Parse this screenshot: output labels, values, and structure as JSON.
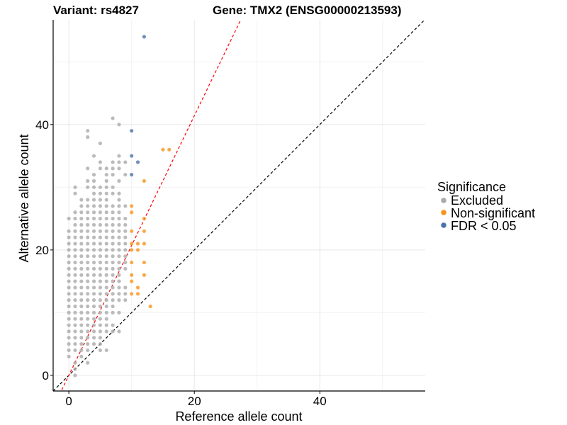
{
  "chart_data": {
    "type": "scatter",
    "title_left": "Variant: rs4827",
    "title_right": "Gene: TMX2 (ENSG00000213593)",
    "xlabel": "Reference allele count",
    "ylabel": "Alternative allele count",
    "xlim": [
      -2.5,
      56.8
    ],
    "ylim": [
      -2.5,
      56.7
    ],
    "xticks": [
      0,
      20,
      40
    ],
    "yticks": [
      0,
      20,
      40
    ],
    "grid": true,
    "reference_lines": [
      {
        "name": "identity",
        "slope": 1,
        "intercept": 0,
        "color": "#000000",
        "style": "dashed"
      },
      {
        "name": "fitted",
        "slope": 2.07,
        "intercept": 0,
        "color": "#ff0000",
        "style": "dashed"
      }
    ],
    "legend": {
      "title": "Significance",
      "position": "right",
      "entries": [
        {
          "label": "Excluded",
          "color": "#aaaaaa"
        },
        {
          "label": "Non-significant",
          "color": "#f7941d"
        },
        {
          "label": "FDR < 0.05",
          "color": "#4a74a8"
        }
      ]
    },
    "series": [
      {
        "name": "Excluded",
        "color": "#aaaaaa",
        "rows": [
          {
            "y": 41,
            "x": [
              7
            ]
          },
          {
            "y": 40,
            "x": [
              8
            ]
          },
          {
            "y": 39,
            "x": [
              3
            ]
          },
          {
            "y": 38,
            "x": [
              3
            ]
          },
          {
            "y": 37,
            "x": [
              5
            ]
          },
          {
            "y": 35,
            "x": [
              4,
              8
            ]
          },
          {
            "y": 34,
            "x": [
              5,
              7,
              8,
              9
            ]
          },
          {
            "y": 33,
            "x": [
              3,
              5,
              6,
              7,
              8
            ]
          },
          {
            "y": 32,
            "x": [
              4,
              6,
              7,
              9
            ]
          },
          {
            "y": 31,
            "x": [
              3,
              4,
              6,
              8
            ]
          },
          {
            "y": 30,
            "x": [
              1,
              3,
              4,
              5,
              6,
              7
            ]
          },
          {
            "y": 29,
            "x": [
              1,
              4,
              5,
              6,
              7,
              8
            ]
          },
          {
            "y": 28,
            "x": [
              2,
              3,
              4,
              5,
              6,
              8
            ]
          },
          {
            "y": 27,
            "x": [
              2,
              3,
              4,
              5,
              6,
              7,
              8,
              9
            ]
          },
          {
            "y": 26,
            "x": [
              1,
              2,
              3,
              4,
              5,
              6,
              7,
              8
            ]
          },
          {
            "y": 25,
            "x": [
              0,
              1,
              2,
              3,
              4,
              5,
              6,
              7,
              8,
              9
            ]
          },
          {
            "y": 24,
            "x": [
              1,
              2,
              3,
              4,
              5,
              6,
              7,
              8,
              9
            ]
          },
          {
            "y": 23,
            "x": [
              0,
              1,
              2,
              3,
              4,
              5,
              6,
              7,
              8,
              9
            ]
          },
          {
            "y": 22,
            "x": [
              0,
              1,
              2,
              3,
              4,
              5,
              6,
              7,
              8,
              9
            ]
          },
          {
            "y": 21,
            "x": [
              0,
              1,
              2,
              3,
              4,
              5,
              6,
              7,
              8,
              9
            ]
          },
          {
            "y": 20,
            "x": [
              0,
              1,
              2,
              3,
              4,
              5,
              6,
              7,
              8,
              9
            ]
          },
          {
            "y": 19,
            "x": [
              0,
              1,
              2,
              3,
              4,
              5,
              6,
              7,
              8,
              9
            ]
          },
          {
            "y": 18,
            "x": [
              0,
              1,
              2,
              3,
              4,
              5,
              6,
              7,
              8,
              9
            ]
          },
          {
            "y": 17,
            "x": [
              0,
              1,
              2,
              3,
              4,
              5,
              6,
              7,
              8,
              9
            ]
          },
          {
            "y": 16,
            "x": [
              0,
              1,
              2,
              3,
              4,
              5,
              6,
              7,
              8
            ]
          },
          {
            "y": 15,
            "x": [
              0,
              1,
              2,
              3,
              4,
              5,
              6,
              7,
              8
            ]
          },
          {
            "y": 14,
            "x": [
              0,
              1,
              2,
              3,
              4,
              5,
              6,
              7,
              8,
              9
            ]
          },
          {
            "y": 13,
            "x": [
              0,
              1,
              2,
              3,
              4,
              5,
              6,
              7,
              8,
              9
            ]
          },
          {
            "y": 12,
            "x": [
              0,
              1,
              2,
              3,
              4,
              5,
              6,
              7,
              8,
              9
            ]
          },
          {
            "y": 11,
            "x": [
              0,
              1,
              2,
              3,
              4,
              5,
              6,
              7
            ]
          },
          {
            "y": 10,
            "x": [
              0,
              1,
              2,
              3,
              4,
              5,
              6,
              7,
              8
            ]
          },
          {
            "y": 9,
            "x": [
              0,
              1,
              2,
              3,
              4,
              5,
              6
            ]
          },
          {
            "y": 8,
            "x": [
              0,
              1,
              2,
              3,
              4,
              5,
              6,
              7
            ]
          },
          {
            "y": 7,
            "x": [
              0,
              1,
              2,
              3,
              4,
              5,
              6,
              7,
              8
            ]
          },
          {
            "y": 6,
            "x": [
              0,
              1,
              2,
              3,
              4,
              5
            ]
          },
          {
            "y": 5,
            "x": [
              0,
              1,
              2,
              3,
              4,
              5
            ]
          },
          {
            "y": 4,
            "x": [
              0,
              1,
              2,
              3,
              5,
              6
            ]
          },
          {
            "y": 3,
            "x": [
              0,
              2
            ]
          },
          {
            "y": 2,
            "x": [
              1,
              3
            ]
          },
          {
            "y": 1,
            "x": [
              1
            ]
          },
          {
            "y": 0,
            "x": [
              1
            ]
          }
        ]
      },
      {
        "name": "Non-significant",
        "color": "#f7941d",
        "points": [
          [
            15,
            36
          ],
          [
            16,
            36
          ],
          [
            12,
            31
          ],
          [
            10,
            27
          ],
          [
            10,
            26
          ],
          [
            12,
            25
          ],
          [
            10,
            23
          ],
          [
            12,
            23
          ],
          [
            10,
            21
          ],
          [
            11,
            21
          ],
          [
            12,
            21
          ],
          [
            10,
            20
          ],
          [
            11,
            20
          ],
          [
            10,
            18
          ],
          [
            12,
            18
          ],
          [
            10,
            16
          ],
          [
            12,
            16
          ],
          [
            10,
            15
          ],
          [
            11,
            14
          ],
          [
            10,
            13
          ],
          [
            11,
            13
          ],
          [
            13,
            11
          ]
        ]
      },
      {
        "name": "FDR < 0.05",
        "color": "#4a74a8",
        "points": [
          [
            12,
            54
          ],
          [
            10,
            39
          ],
          [
            10,
            35
          ],
          [
            11,
            34
          ],
          [
            10,
            32
          ]
        ]
      }
    ]
  }
}
